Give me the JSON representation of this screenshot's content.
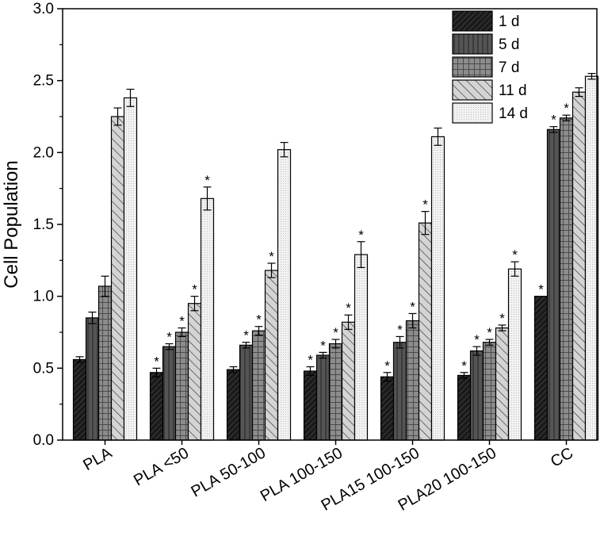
{
  "chart_data": {
    "type": "bar",
    "title": "",
    "xlabel": "",
    "ylabel": "Cell Population",
    "ylim": [
      0,
      3.0
    ],
    "yticks": [
      "0.0",
      "0.5",
      "1.0",
      "1.5",
      "2.0",
      "2.5",
      "3.0"
    ],
    "categories": [
      "PLA",
      "PLA <50",
      "PLA 50-100",
      "PLA 100-150",
      "PLA15 100-150",
      "PLA20 100-150",
      "CC"
    ],
    "series": [
      {
        "name": "1 d",
        "color": "#1a1a1a",
        "pattern": "diag-dense",
        "values": [
          0.56,
          0.47,
          0.49,
          0.48,
          0.44,
          0.45,
          1.0
        ],
        "errors": [
          0.02,
          0.03,
          0.02,
          0.03,
          0.03,
          0.02,
          0.0
        ],
        "significant": [
          false,
          true,
          false,
          true,
          true,
          true,
          true
        ]
      },
      {
        "name": "5 d",
        "color": "#555555",
        "pattern": "vertical",
        "values": [
          0.85,
          0.65,
          0.66,
          0.59,
          0.68,
          0.62,
          2.16
        ],
        "errors": [
          0.04,
          0.02,
          0.02,
          0.02,
          0.04,
          0.03,
          0.02
        ],
        "significant": [
          false,
          true,
          true,
          true,
          true,
          true,
          true
        ]
      },
      {
        "name": "7 d",
        "color": "#8c8c8c",
        "pattern": "grid",
        "values": [
          1.07,
          0.75,
          0.76,
          0.67,
          0.83,
          0.68,
          2.24
        ],
        "errors": [
          0.07,
          0.03,
          0.03,
          0.03,
          0.05,
          0.02,
          0.02
        ],
        "significant": [
          false,
          true,
          true,
          true,
          true,
          true,
          true
        ]
      },
      {
        "name": "11 d",
        "color": "#c8c8c8",
        "pattern": "backslash",
        "values": [
          2.25,
          0.95,
          1.18,
          0.82,
          1.51,
          0.78,
          2.42
        ],
        "errors": [
          0.06,
          0.05,
          0.05,
          0.05,
          0.08,
          0.02,
          0.03
        ],
        "significant": [
          false,
          true,
          true,
          true,
          true,
          true,
          false
        ]
      },
      {
        "name": "14 d",
        "color": "#ececec",
        "pattern": "dots",
        "values": [
          2.38,
          1.68,
          2.02,
          1.29,
          2.11,
          1.19,
          2.53
        ],
        "errors": [
          0.06,
          0.08,
          0.05,
          0.09,
          0.06,
          0.05,
          0.02
        ],
        "significant": [
          false,
          true,
          false,
          true,
          false,
          true,
          false
        ]
      }
    ],
    "significance_marker": "*",
    "legend_position": "top-right"
  }
}
